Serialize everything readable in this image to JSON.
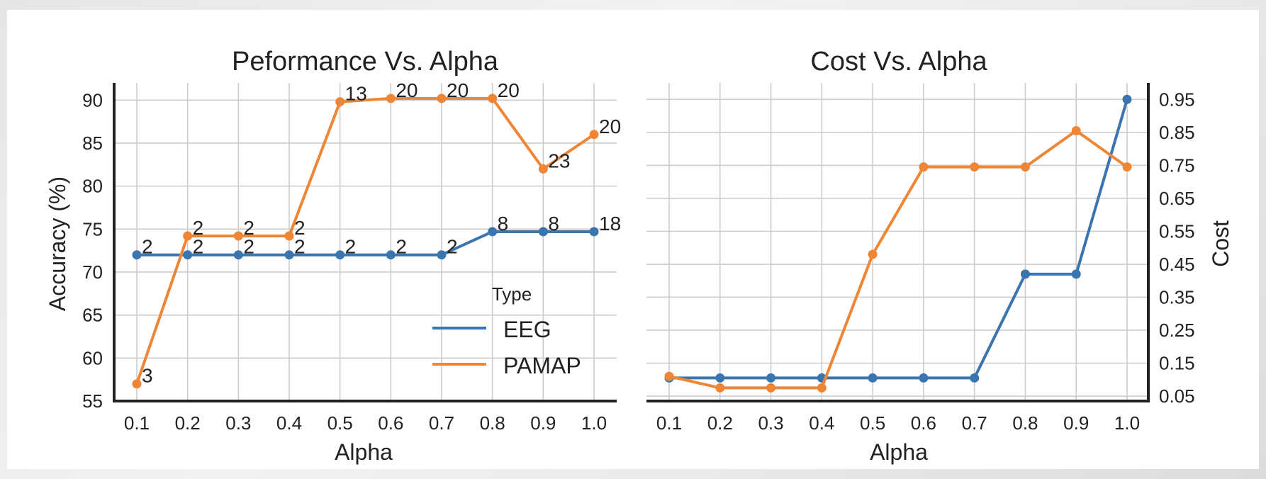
{
  "colors": {
    "eeg": "#3b75af",
    "pamap": "#ef8636",
    "grid": "#cccccc",
    "axis": "#222222"
  },
  "legend": {
    "title": "Type",
    "entries": [
      {
        "name": "EEG",
        "color": "#3b75af"
      },
      {
        "name": "PAMAP",
        "color": "#ef8636"
      }
    ]
  },
  "chart_data": [
    {
      "type": "line",
      "title": "Peformance Vs. Alpha",
      "xlabel": "Alpha",
      "ylabel": "Accuracy (%)",
      "x": [
        0.1,
        0.2,
        0.3,
        0.4,
        0.5,
        0.6,
        0.7,
        0.8,
        0.9,
        1.0
      ],
      "x_tick_labels": [
        "0.1",
        "0.2",
        "0.3",
        "0.4",
        "0.5",
        "0.6",
        "0.7",
        "0.8",
        "0.9",
        "1.0"
      ],
      "ylim": [
        55,
        92
      ],
      "y_ticks": [
        55,
        60,
        65,
        70,
        75,
        80,
        85,
        90
      ],
      "y_tick_labels": [
        "55",
        "60",
        "65",
        "70",
        "75",
        "80",
        "85",
        "90"
      ],
      "grid": true,
      "legend_position": "bottom-right",
      "series": [
        {
          "name": "EEG",
          "color": "#3b75af",
          "values": [
            72,
            72,
            72,
            72,
            72,
            72,
            72,
            74.7,
            74.7,
            74.7
          ],
          "point_labels": [
            "2",
            "2",
            "2",
            "2",
            "2",
            "2",
            "2",
            "8",
            "8",
            "18"
          ]
        },
        {
          "name": "PAMAP",
          "color": "#ef8636",
          "values": [
            57,
            74.2,
            74.2,
            74.2,
            89.8,
            90.2,
            90.2,
            90.2,
            82,
            86
          ],
          "point_labels": [
            "3",
            "2",
            "2",
            "2",
            "13",
            "20",
            "20",
            "20",
            "23",
            "20"
          ]
        }
      ]
    },
    {
      "type": "line",
      "title": "Cost Vs. Alpha",
      "xlabel": "Alpha",
      "ylabel": "Cost",
      "x": [
        0.1,
        0.2,
        0.3,
        0.4,
        0.5,
        0.6,
        0.7,
        0.8,
        0.9,
        1.0
      ],
      "x_tick_labels": [
        "0.1",
        "0.2",
        "0.3",
        "0.4",
        "0.5",
        "0.6",
        "0.7",
        "0.8",
        "0.9",
        "1.0"
      ],
      "ylim": [
        0.035,
        1.0
      ],
      "y_ticks": [
        0.05,
        0.15,
        0.25,
        0.35,
        0.45,
        0.55,
        0.65,
        0.75,
        0.85,
        0.95
      ],
      "y_tick_labels": [
        "0.05",
        "0.15",
        "0.25",
        "0.35",
        "0.45",
        "0.55",
        "0.65",
        "0.75",
        "0.85",
        "0.95"
      ],
      "y_axis_side": "right",
      "grid": true,
      "series": [
        {
          "name": "EEG",
          "color": "#3b75af",
          "values": [
            0.105,
            0.105,
            0.105,
            0.105,
            0.105,
            0.105,
            0.105,
            0.42,
            0.42,
            0.95
          ]
        },
        {
          "name": "PAMAP",
          "color": "#ef8636",
          "values": [
            0.11,
            0.075,
            0.075,
            0.075,
            0.48,
            0.745,
            0.745,
            0.745,
            0.855,
            0.745
          ]
        }
      ]
    }
  ]
}
